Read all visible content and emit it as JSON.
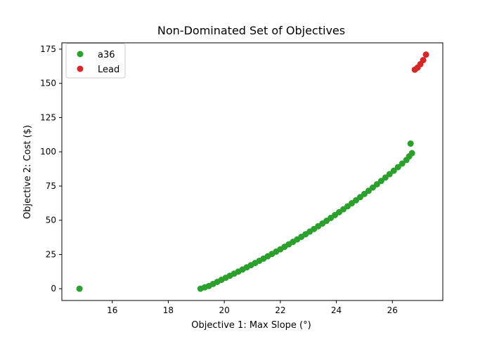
{
  "chart_data": {
    "type": "scatter",
    "title": "Non-Dominated Set of Objectives",
    "xlabel": "Objective 1: Max Slope (°)",
    "ylabel": "Objective 2: Cost ($)",
    "xlim": [
      14.2,
      27.8
    ],
    "ylim": [
      -8.6,
      179.6
    ],
    "xticks": [
      16,
      18,
      20,
      22,
      24,
      26
    ],
    "yticks": [
      0,
      25,
      50,
      75,
      100,
      125,
      150,
      175
    ],
    "grid": false,
    "legend_position": "top-left",
    "series": [
      {
        "name": "a36",
        "color": "#2ca02c",
        "points": [
          [
            14.83,
            0.0
          ],
          [
            19.15,
            0.0
          ],
          [
            19.3,
            1.0
          ],
          [
            19.45,
            2.0
          ],
          [
            19.6,
            3.5
          ],
          [
            19.75,
            5.0
          ],
          [
            19.9,
            6.5
          ],
          [
            20.05,
            8.0
          ],
          [
            20.2,
            9.5
          ],
          [
            20.35,
            11.0
          ],
          [
            20.5,
            12.5
          ],
          [
            20.65,
            14.0
          ],
          [
            20.8,
            15.6
          ],
          [
            20.95,
            17.2
          ],
          [
            21.1,
            18.8
          ],
          [
            21.25,
            20.4
          ],
          [
            21.4,
            22.0
          ],
          [
            21.55,
            23.7
          ],
          [
            21.7,
            25.4
          ],
          [
            21.85,
            27.1
          ],
          [
            22.0,
            28.8
          ],
          [
            22.15,
            30.6
          ],
          [
            22.3,
            32.4
          ],
          [
            22.45,
            34.2
          ],
          [
            22.6,
            36.0
          ],
          [
            22.75,
            37.9
          ],
          [
            22.9,
            39.8
          ],
          [
            23.05,
            41.7
          ],
          [
            23.2,
            43.6
          ],
          [
            23.35,
            45.6
          ],
          [
            23.5,
            47.6
          ],
          [
            23.65,
            49.6
          ],
          [
            23.8,
            51.7
          ],
          [
            23.95,
            53.8
          ],
          [
            24.1,
            55.9
          ],
          [
            24.25,
            58.0
          ],
          [
            24.4,
            60.2
          ],
          [
            24.55,
            62.4
          ],
          [
            24.7,
            64.6
          ],
          [
            24.85,
            66.9
          ],
          [
            25.0,
            69.2
          ],
          [
            25.15,
            71.5
          ],
          [
            25.3,
            73.9
          ],
          [
            25.45,
            76.3
          ],
          [
            25.6,
            78.7
          ],
          [
            25.75,
            81.2
          ],
          [
            25.9,
            83.7
          ],
          [
            26.05,
            86.2
          ],
          [
            26.2,
            88.8
          ],
          [
            26.35,
            91.4
          ],
          [
            26.5,
            94.0
          ],
          [
            26.6,
            96.7
          ],
          [
            26.7,
            99.0
          ],
          [
            26.65,
            106.0
          ]
        ]
      },
      {
        "name": "Lead",
        "color": "#d62728",
        "points": [
          [
            26.8,
            160.0
          ],
          [
            26.9,
            161.5
          ],
          [
            27.0,
            164.0
          ],
          [
            27.1,
            167.0
          ],
          [
            27.2,
            171.0
          ]
        ]
      }
    ]
  }
}
